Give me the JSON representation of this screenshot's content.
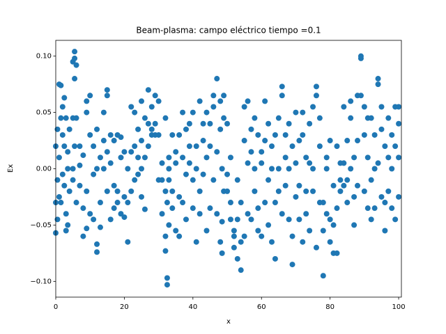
{
  "chart_data": {
    "type": "scatter",
    "title": "Beam-plasma: campo eléctrico  tiempo =0.1",
    "xlabel": "x",
    "ylabel": "Ex",
    "color": "#1f77b4",
    "xlim": [
      0,
      100.8
    ],
    "ylim": [
      -0.114,
      0.114
    ],
    "xticks": [
      0,
      20,
      40,
      60,
      80,
      100
    ],
    "yticks": [
      {
        "value": -0.1,
        "label": "−0.10"
      },
      {
        "value": -0.05,
        "label": "−0.05"
      },
      {
        "value": 0,
        "label": "0.00"
      },
      {
        "value": 0.05,
        "label": "0.05"
      },
      {
        "value": 0.1,
        "label": "0.10"
      }
    ],
    "x": [
      0,
      0,
      0,
      0.5,
      0.5,
      0.5,
      1,
      1,
      1,
      1.5,
      1.5,
      1.5,
      2,
      2,
      2,
      2.5,
      2.5,
      2.5,
      3,
      3,
      3,
      3.5,
      3.5,
      3.5,
      4,
      4,
      5,
      5,
      5,
      5,
      5.5,
      5.5,
      5.5,
      5.5,
      6,
      6,
      6,
      7,
      7,
      7,
      8,
      8,
      8,
      9,
      9,
      9,
      9,
      10,
      10,
      10,
      11,
      11,
      11,
      12,
      12,
      12,
      12,
      13,
      13,
      13,
      14,
      14,
      14,
      15,
      15,
      15,
      15,
      16,
      16,
      16,
      17,
      17,
      17,
      18,
      18,
      18,
      19,
      19,
      19,
      20,
      20,
      20,
      21,
      21,
      21,
      22,
      22,
      22,
      23,
      23,
      23,
      24,
      24,
      24,
      25,
      25,
      25,
      25,
      26,
      26,
      26,
      27,
      27,
      27,
      28,
      28,
      28,
      29,
      29,
      29,
      30,
      30,
      30,
      31,
      31,
      31,
      32,
      32,
      32,
      32,
      32.5,
      32.5,
      32.5,
      33,
      33,
      33,
      33,
      34,
      34,
      34,
      35,
      35,
      35,
      36,
      36,
      36,
      37,
      37,
      37,
      38,
      38,
      38,
      39,
      39,
      39,
      40,
      40,
      40,
      41,
      41,
      41,
      42,
      42,
      42,
      43,
      43,
      43,
      44,
      44,
      44,
      45,
      45,
      45,
      46,
      46,
      46,
      47,
      47,
      47,
      48,
      48,
      48,
      48.5,
      48.5,
      48.5,
      49,
      49,
      49,
      50,
      50,
      50,
      51,
      51,
      51,
      52,
      52,
      52,
      53,
      53,
      53,
      54,
      54,
      54,
      55,
      55,
      55,
      56,
      56,
      56,
      57,
      57,
      57,
      58,
      58,
      58,
      59,
      59,
      59,
      60,
      60,
      60,
      61,
      61,
      61,
      62,
      62,
      62,
      63,
      63,
      63,
      64,
      64,
      64,
      65,
      65,
      65,
      66,
      66,
      66,
      67,
      67,
      67,
      68,
      68,
      68,
      69,
      69,
      69,
      70,
      70,
      70,
      71,
      71,
      71,
      72,
      72,
      72,
      73,
      73,
      73,
      74,
      74,
      74,
      75,
      75,
      75,
      76,
      76,
      76,
      77,
      77,
      77,
      78,
      78,
      78,
      79,
      79,
      79,
      80,
      80,
      80,
      81,
      81,
      81,
      82,
      82,
      82,
      83,
      83,
      83,
      84,
      84,
      84,
      85,
      85,
      85,
      86,
      86,
      86,
      87,
      87,
      87,
      88,
      88,
      88,
      89,
      89,
      89,
      90,
      90,
      90,
      91,
      91,
      91,
      92,
      92,
      92,
      93,
      93,
      93,
      94,
      94,
      94,
      95,
      95,
      95,
      96,
      96,
      96,
      97,
      97,
      97,
      98,
      98,
      98,
      99,
      99,
      99,
      100,
      100,
      100,
      100
    ],
    "values": [
      -0.03,
      0.02,
      -0.057,
      0.035,
      -0.01,
      -0.045,
      0.075,
      0.01,
      -0.025,
      0.074,
      0.045,
      -0.03,
      0.03,
      -0.005,
      0.055,
      0.063,
      0.02,
      -0.015,
      0.045,
      -0.04,
      -0.055,
      0.015,
      -0.05,
      0,
      0.035,
      -0.02,
      0.095,
      0.045,
      0,
      -0.01,
      0.104,
      0.098,
      0.08,
      0.02,
      0.092,
      0.045,
      -0.03,
      0.02,
      -0.015,
      0.003,
      -0.035,
      -0.06,
      0.012,
      0.05,
      0.06,
      -0.02,
      -0.053,
      0.065,
      0.03,
      -0.04,
      0.02,
      -0.005,
      -0.045,
      -0.067,
      -0.074,
      0,
      0.035,
      -0.03,
      0.01,
      -0.052,
      0.05,
      0.025,
      0,
      0.065,
      0.07,
      0.015,
      -0.02,
      0.03,
      -0.045,
      0.005,
      -0.015,
      0.025,
      -0.035,
      0.03,
      -0.02,
      -0.03,
      0.01,
      -0.04,
      0.028,
      -0.025,
      0.015,
      -0.043,
      0,
      -0.03,
      -0.065,
      0.055,
      -0.02,
      0.015,
      0.05,
      0.02,
      -0.01,
      0.01,
      -0.005,
      0.035,
      0.06,
      0.025,
      -0.025,
      0,
      0.01,
      -0.036,
      0.045,
      0.07,
      0.04,
      0.02,
      0.055,
      0.03,
      0.035,
      0.03,
      0.065,
      0.04,
      0.06,
      0.03,
      -0.01,
      -0.01,
      -0.04,
      0.005,
      0.045,
      -0.02,
      -0.06,
      -0.073,
      -0.097,
      -0.103,
      -0.03,
      0,
      -0.01,
      0.01,
      -0.05,
      -0.02,
      -0.035,
      0.03,
      0.015,
      -0.055,
      0.005,
      -0.06,
      0.03,
      -0.025,
      0.05,
      0.01,
      -0.03,
      0.035,
      -0.005,
      -0.045,
      0.02,
      0.005,
      0.04,
      0.05,
      -0.01,
      -0.035,
      -0.065,
      0,
      0.02,
      0.06,
      -0.02,
      -0.04,
      0.04,
      0.025,
      -0.005,
      0.05,
      0.01,
      -0.055,
      0.02,
      -0.035,
      0.04,
      0.065,
      0.055,
      -0.01,
      0.08,
      0.015,
      -0.04,
      0.06,
      0.035,
      -0.065,
      -0.075,
      -0.047,
      0,
      0.065,
      0.045,
      -0.02,
      0.04,
      -0.02,
      -0.005,
      -0.03,
      -0.045,
      0.01,
      -0.055,
      -0.06,
      -0.07,
      -0.045,
      -0.08,
      -0.01,
      -0.09,
      -0.065,
      -0.03,
      0.055,
      0.025,
      -0.06,
      0.06,
      -0.04,
      0.005,
      0.035,
      -0.045,
      0.015,
      0.045,
      -0.02,
      0,
      0.03,
      -0.035,
      -0.055,
      0.015,
      -0.06,
      0.005,
      0.06,
      0.025,
      -0.03,
      -0.01,
      -0.05,
      0.04,
      0,
      -0.065,
      0.02,
      -0.08,
      0.03,
      -0.03,
      0.045,
      -0.02,
      0,
      0.073,
      0.065,
      -0.04,
      0.03,
      0.01,
      -0.015,
      0.04,
      -0.045,
      0,
      -0.085,
      -0.06,
      0.02,
      0.05,
      0.005,
      -0.025,
      0.025,
      -0.045,
      -0.015,
      0.05,
      0.03,
      -0.065,
      0.01,
      -0.04,
      -0.02,
      0.04,
      0.005,
      -0.055,
      0.055,
      -0.02,
      0,
      0.073,
      0.065,
      -0.07,
      0.045,
      0.02,
      -0.03,
      -0.095,
      -0.055,
      -0.03,
      0.01,
      -0.04,
      0,
      -0.065,
      -0.045,
      0.025,
      -0.075,
      -0.015,
      -0.05,
      0.02,
      -0.035,
      -0.075,
      -0.01,
      0.005,
      -0.02,
      0.055,
      0.005,
      -0.015,
      0.025,
      -0.01,
      -0.03,
      0.06,
      0.045,
      0,
      0.01,
      -0.05,
      -0.025,
      0.065,
      0.025,
      -0.015,
      0.1,
      0.098,
      0.065,
      0.055,
      0.03,
      -0.02,
      0.01,
      -0.035,
      0.045,
      0.045,
      -0.045,
      -0.01,
      0.03,
      0,
      -0.035,
      0.08,
      0.075,
      0.005,
      0.055,
      0.035,
      -0.025,
      0.02,
      -0.055,
      -0.03,
      0.045,
      0.01,
      -0.02,
      0.03,
      -0.035,
      0,
      0.055,
      0.02,
      -0.045,
      0.055,
      0.04,
      0.01,
      -0.025
    ]
  }
}
